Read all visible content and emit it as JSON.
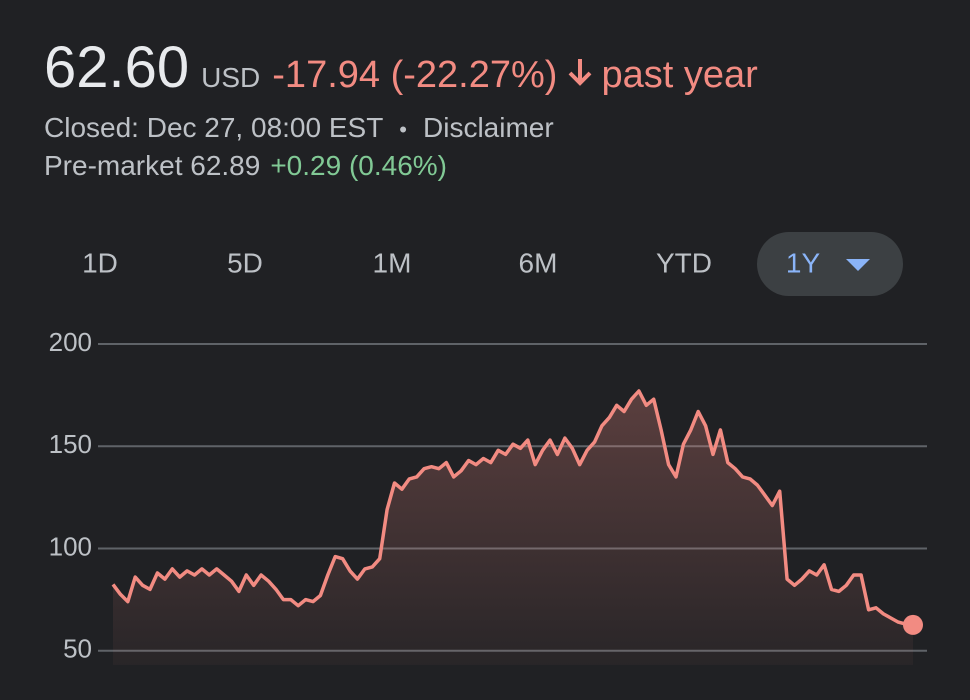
{
  "header": {
    "price": "62.60",
    "currency": "USD",
    "change": "-17.94 (-22.27%)",
    "period": "past year",
    "closed": "Closed: Dec 27, 08:00 EST",
    "separator": "•",
    "disclaimer": "Disclaimer",
    "premarket": "Pre-market 62.89",
    "premarket_change": "+0.29 (0.46%)"
  },
  "tabs": {
    "items": [
      "1D",
      "5D",
      "1M",
      "6M",
      "YTD",
      "1Y"
    ],
    "selected": "1Y"
  },
  "chart_data": {
    "type": "line",
    "color": "#f28b82",
    "grid": true,
    "ylim": [
      43,
      200
    ],
    "yticks": [
      50,
      100,
      150,
      200
    ],
    "values": [
      82.4,
      77.6,
      74,
      86,
      82,
      80,
      88,
      85,
      90,
      86,
      89,
      87,
      90,
      87,
      90,
      87,
      84,
      79,
      87,
      82,
      87,
      84,
      80,
      75,
      75,
      72,
      75,
      74,
      77,
      87,
      96,
      95,
      89,
      85,
      90,
      91,
      95,
      119,
      132,
      129,
      134,
      135,
      139,
      140,
      139,
      142,
      135,
      138,
      143,
      141,
      144,
      142,
      148,
      146,
      151,
      149,
      153,
      141,
      148,
      153,
      146,
      154,
      149,
      141,
      148,
      152,
      160,
      164,
      170,
      167,
      173,
      177,
      170,
      173,
      158,
      141,
      135,
      151,
      158,
      167,
      160,
      146,
      158,
      142,
      139,
      135,
      134,
      131,
      126,
      121,
      128,
      85,
      82,
      85,
      89,
      87,
      92,
      80,
      79,
      82,
      87,
      87,
      70,
      71,
      68,
      66,
      64,
      63,
      62.6
    ]
  }
}
